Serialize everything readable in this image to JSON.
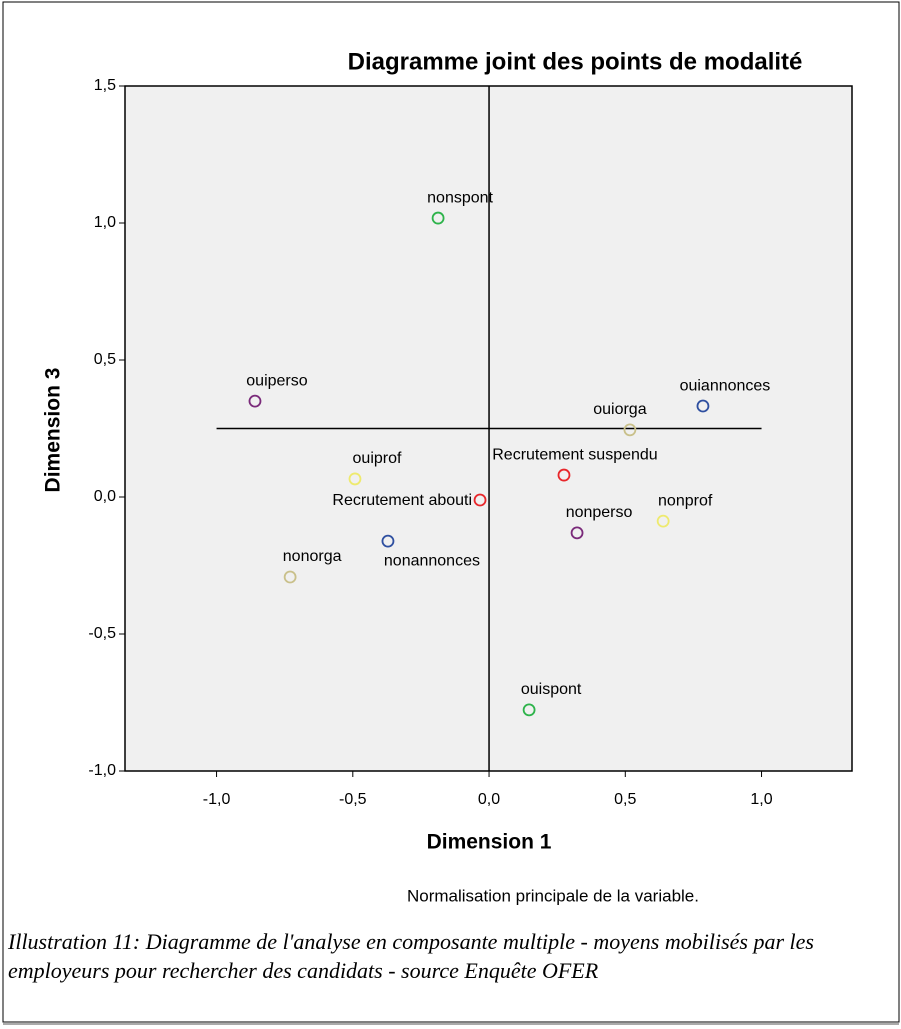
{
  "chart_data": {
    "type": "scatter",
    "title": "Diagramme joint des points de modalité",
    "x_label": "Dimension 1",
    "y_label": "Dimension 3",
    "note": "Normalisation principale de la variable.",
    "caption": "Illustration 11: Diagramme de l'analyse en composante multiple - moyens mobilisés par les employeurs pour rechercher des candidats - source Enquête OFER",
    "labels": [
      "nonspont",
      "ouiperso",
      "ouiannonces",
      "ouiorga",
      "Recrutement suspendu",
      "ouiprof",
      "Recrutement abouti",
      "nonprof",
      "nonperso",
      "nonannonces",
      "nonorga",
      "ouispont"
    ],
    "x": [
      -0.187,
      -0.859,
      0.785,
      0.517,
      0.275,
      -0.492,
      -0.033,
      0.639,
      0.323,
      -0.371,
      -0.73,
      0.147
    ],
    "values": [
      1.018,
      0.35,
      0.332,
      0.245,
      0.08,
      0.066,
      -0.011,
      -0.088,
      -0.131,
      -0.161,
      -0.292,
      -0.777
    ],
    "colors": [
      "#2db34a",
      "#7a2a7a",
      "#2e4fa0",
      "#c9c08a",
      "#e8262a",
      "#eeea6e",
      "#e8262a",
      "#eeea6e",
      "#7a2a7a",
      "#2e4fa0",
      "#c9c08a",
      "#2db34a"
    ],
    "reference_lines": [
      {
        "axis": "x",
        "value": 0
      },
      {
        "axis": "y",
        "value": 0.25,
        "from": -1,
        "to": 1
      }
    ],
    "xlim": [
      -1.336,
      1.332
    ],
    "ylim": [
      -1.0,
      1.5
    ],
    "xticks": [
      {
        "value": -1.0,
        "label": "-1,0"
      },
      {
        "value": -0.5,
        "label": "-0,5"
      },
      {
        "value": 0.0,
        "label": "0,0"
      },
      {
        "value": 0.5,
        "label": "0,5"
      },
      {
        "value": 1.0,
        "label": "1,0"
      }
    ],
    "yticks": [
      {
        "value": -1.0,
        "label": "-1,0"
      },
      {
        "value": -0.5,
        "label": "-0,5"
      },
      {
        "value": 0.0,
        "label": "0,0"
      },
      {
        "value": 0.5,
        "label": "0,5"
      },
      {
        "value": 1.0,
        "label": "1,0"
      },
      {
        "value": 1.5,
        "label": "1,5"
      }
    ],
    "plot_background": "#f0f0f0"
  }
}
